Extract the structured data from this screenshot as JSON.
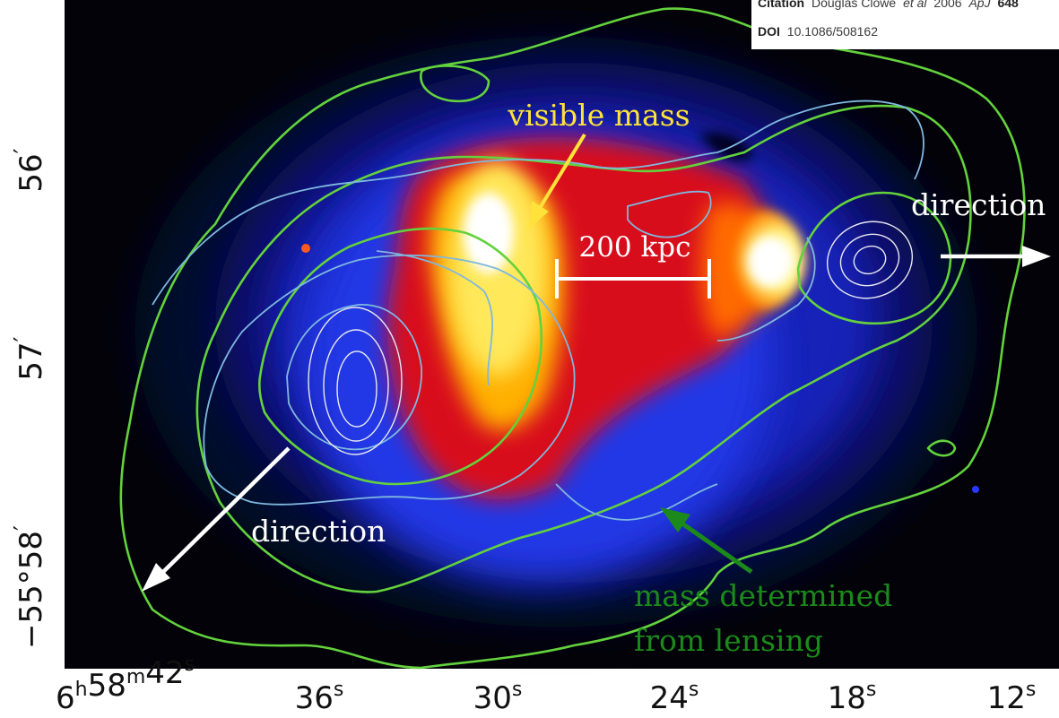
{
  "citation": {
    "label": "Citation",
    "authors": "Douglas Clowe",
    "etal": "et al",
    "year": "2006",
    "journal": "ApJ",
    "volume": "648",
    "doi_label": "DOI",
    "doi": "10.1086/508162"
  },
  "overlay": {
    "visible_mass": "visible mass",
    "scale": "200 kpc",
    "direction_right": "direction",
    "direction_left": "direction",
    "lensing_line1": "mass determined",
    "lensing_line2": "from lensing"
  },
  "axes": {
    "y_ticks": [
      {
        "main": "56",
        "prime": "′"
      },
      {
        "main": "57",
        "prime": "′"
      },
      {
        "main": "−55°58",
        "prime": "′"
      }
    ],
    "x_ticks": [
      {
        "label": "6h58m42s"
      },
      {
        "label": "36s"
      },
      {
        "label": "30s"
      },
      {
        "label": "24s"
      },
      {
        "label": "18s"
      },
      {
        "label": "12s"
      }
    ]
  },
  "colors": {
    "lensing_contour": "#63d23c",
    "xray_contour": "#7fb8df",
    "lensing_label": "#1b8a1b",
    "visible_label": "#ffe23a"
  }
}
